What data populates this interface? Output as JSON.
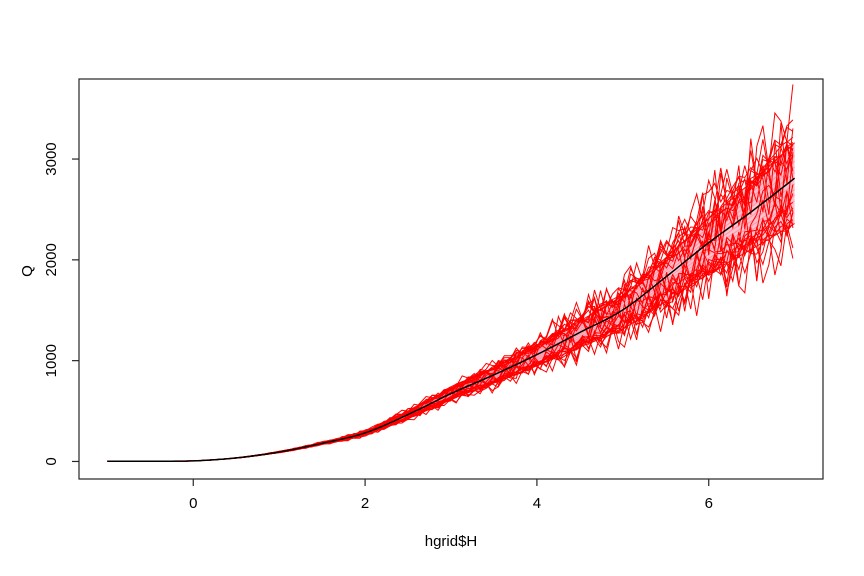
{
  "figure": {
    "background": "#ffffff",
    "axis_color": "#262626",
    "tick_font_size": 15
  },
  "chart_data": {
    "type": "line",
    "title": "",
    "xlabel": "hgrid$H",
    "ylabel": "Q",
    "xlim": [
      -1.33,
      7.33
    ],
    "ylim": [
      -174,
      3794
    ],
    "xticks": [
      0,
      2,
      4,
      6
    ],
    "xtick_labels": [
      "0",
      "2",
      "4",
      "6"
    ],
    "yticks": [
      0,
      1000,
      2000,
      3000
    ],
    "ytick_labels": [
      "0",
      "1000",
      "2000",
      "3000"
    ],
    "grid": false,
    "legend": "none",
    "series": [
      {
        "name": "median-rating-curve",
        "role": "center",
        "color": "#000000",
        "width": 1.5,
        "x": [
          -1,
          -0.75,
          -0.5,
          -0.25,
          0,
          0.5,
          1,
          1.5,
          2,
          2.5,
          3,
          3.5,
          4,
          4.5,
          5,
          5.5,
          6,
          6.5,
          7
        ],
        "y": [
          2,
          2,
          2,
          3,
          6,
          35,
          94,
          180,
          283,
          465,
          673,
          860,
          1060,
          1280,
          1503,
          1830,
          2170,
          2480,
          2810
        ]
      },
      {
        "name": "uncertainty-band-upper",
        "role": "band-upper-edge",
        "color": "#ff0000",
        "x": [
          -1,
          -0.75,
          -0.5,
          -0.25,
          0,
          0.5,
          1,
          1.5,
          2,
          2.5,
          3,
          3.5,
          4,
          4.5,
          5,
          5.5,
          6,
          6.5,
          7
        ],
        "y": [
          2,
          2,
          2,
          3,
          6,
          36,
          97,
          188,
          298,
          493,
          718,
          924,
          1147,
          1394,
          1648,
          2020,
          2411,
          2773,
          3161
        ]
      },
      {
        "name": "uncertainty-band-lower",
        "role": "band-lower-edge",
        "color": "#ff0000",
        "x": [
          -1,
          -0.75,
          -0.5,
          -0.25,
          0,
          0.5,
          1,
          1.5,
          2,
          2.5,
          3,
          3.5,
          4,
          4.5,
          5,
          5.5,
          6,
          6.5,
          7
        ],
        "y": [
          2,
          2,
          2,
          3,
          6,
          34,
          90,
          170,
          264,
          430,
          615,
          778,
          949,
          1134,
          1317,
          1587,
          1862,
          2106,
          2360
        ]
      }
    ],
    "band_fill": "#ffc0cb",
    "ensemble": {
      "description": "Monte Carlo rating-curve realizations (jagged red lines around band)",
      "count": 28,
      "color": "#ff0000",
      "line_width": 1,
      "step_h": 0.07,
      "edge_offset_min": 0.1,
      "edge_offset_max": 0.16,
      "noise_linear": 0.05,
      "noise_spike": 0.16,
      "growth_exponent": 0.9,
      "seed": 13
    },
    "inner_stripes": {
      "count": 9,
      "max_offset": 0.08,
      "color": "rgba(255,120,145,0.6)"
    }
  }
}
